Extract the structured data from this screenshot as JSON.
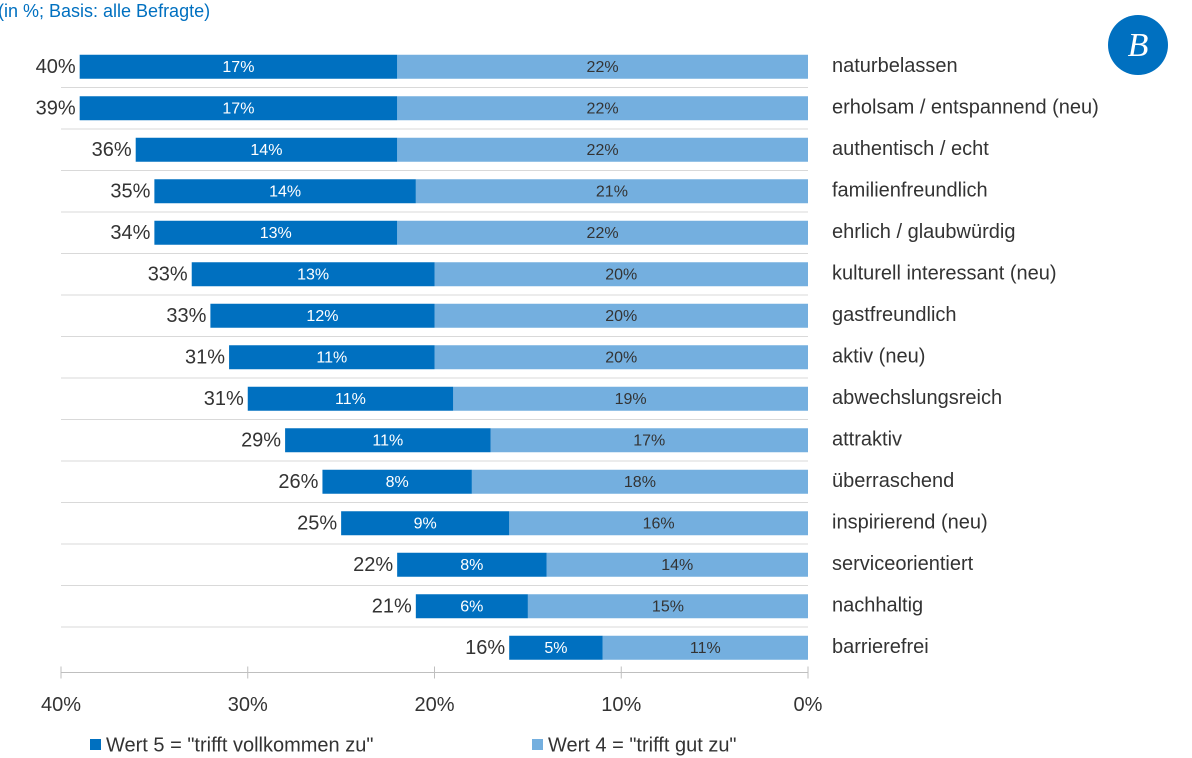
{
  "chart_data": {
    "type": "bar",
    "orientation": "horizontal",
    "stacked": true,
    "subtitle": "(in %; Basis: alle Befragte)",
    "categories": [
      "naturbelassen",
      "erholsam / entspannend (neu)",
      "authentisch / echt",
      "familienfreundlich",
      "ehrlich / glaubwürdig",
      "kulturell interessant (neu)",
      "gastfreundlich",
      "aktiv (neu)",
      "abwechslungsreich",
      "attraktiv",
      "überraschend",
      "inspirierend (neu)",
      "serviceorientiert",
      "nachhaltig",
      "barrierefrei"
    ],
    "series": [
      {
        "name": "Wert 4 = \"trifft gut zu\"",
        "color": "#74afdf",
        "values": [
          22,
          22,
          22,
          21,
          22,
          20,
          20,
          20,
          19,
          17,
          18,
          16,
          14,
          15,
          11
        ],
        "value_labels": [
          "22%",
          "22%",
          "22%",
          "21%",
          "22%",
          "20%",
          "20%",
          "20%",
          "19%",
          "17%",
          "18%",
          "16%",
          "14%",
          "15%",
          "11%"
        ]
      },
      {
        "name": "Wert 5 = \"trifft vollkommen zu\"",
        "color": "#0070c0",
        "values": [
          17,
          17,
          14,
          14,
          13,
          13,
          12,
          11,
          11,
          11,
          8,
          9,
          8,
          6,
          5
        ],
        "value_labels": [
          "17%",
          "17%",
          "14%",
          "14%",
          "13%",
          "13%",
          "12%",
          "11%",
          "11%",
          "11%",
          "8%",
          "9%",
          "8%",
          "6%",
          "5%"
        ]
      }
    ],
    "total_labels": [
      "40%",
      "39%",
      "36%",
      "35%",
      "34%",
      "33%",
      "33%",
      "31%",
      "31%",
      "29%",
      "26%",
      "25%",
      "22%",
      "21%",
      "16%"
    ],
    "xlim": [
      40,
      0
    ],
    "xticks": [
      {
        "value": 40,
        "label": "40%"
      },
      {
        "value": 30,
        "label": "30%"
      },
      {
        "value": 20,
        "label": "20%"
      },
      {
        "value": 10,
        "label": "10%"
      },
      {
        "value": 0,
        "label": "0%"
      }
    ]
  }
}
